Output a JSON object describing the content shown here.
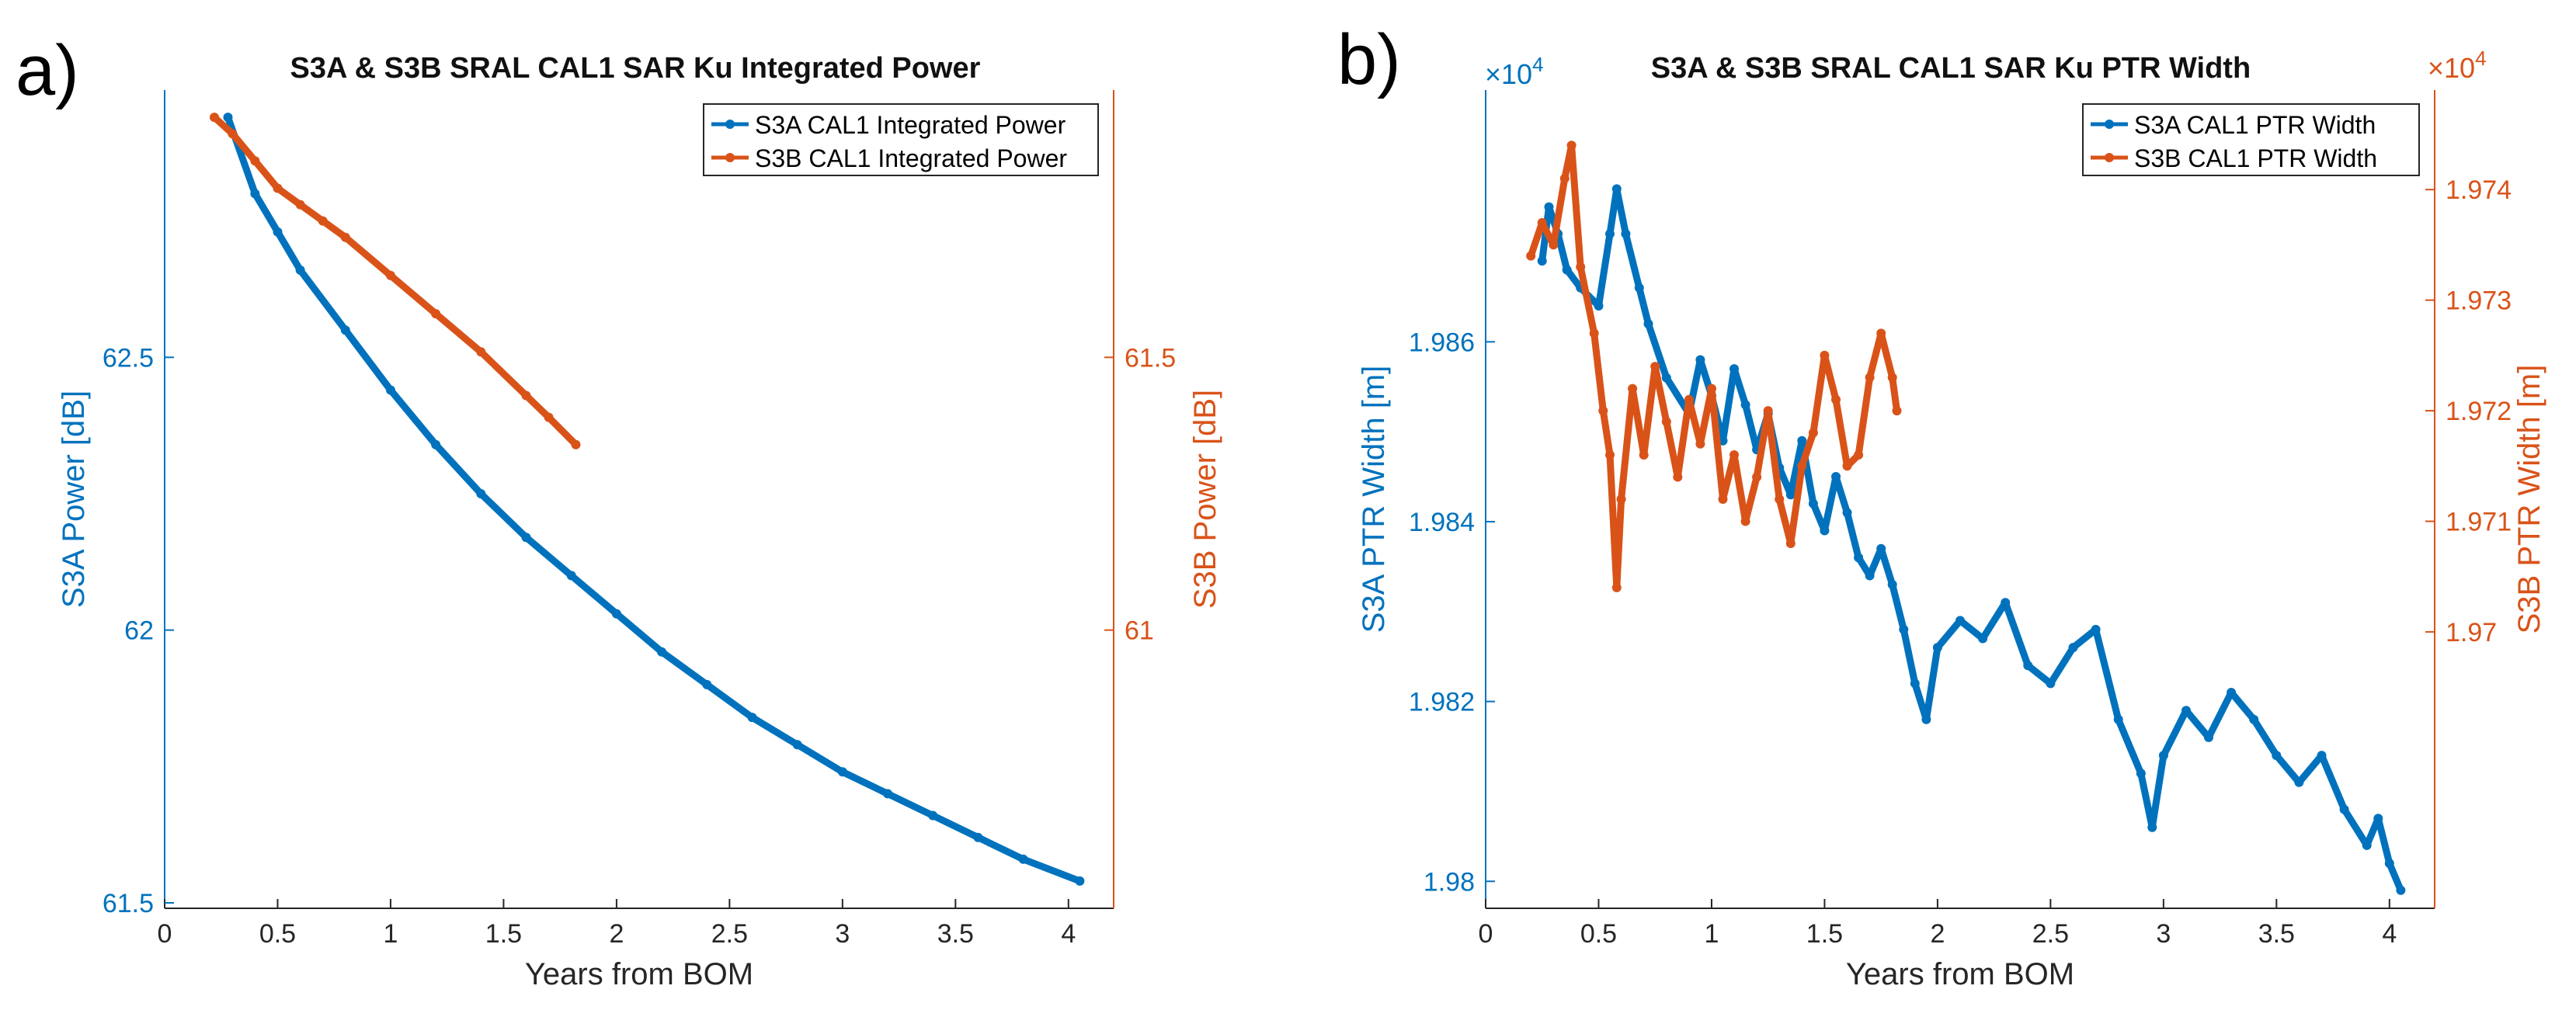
{
  "chart_data": [
    {
      "type": "line",
      "panel_label": "a)",
      "title": "S3A & S3B SRAL CAL1 SAR Ku Integrated Power",
      "xlabel": "Years from BOM",
      "ylabel_left": "S3A Power [dB]",
      "ylabel_right": "S3B Power [dB]",
      "xlim": [
        0,
        4.2
      ],
      "ylim_left": [
        61.49,
        62.99
      ],
      "ylim_right": [
        60.49,
        61.99
      ],
      "xticks": [
        0,
        0.5,
        1,
        1.5,
        2,
        2.5,
        3,
        3.5,
        4
      ],
      "xtick_labels": [
        "0",
        "0.5",
        "1",
        "1.5",
        "2",
        "2.5",
        "3",
        "3.5",
        "4"
      ],
      "yticks_left": [
        61.5,
        62,
        62.5
      ],
      "ytick_labels_left": [
        "61.5",
        "62",
        "62.5"
      ],
      "yticks_right": [
        61,
        61.5
      ],
      "ytick_labels_right": [
        "61",
        "61.5"
      ],
      "legend_position": "top-right",
      "series": [
        {
          "name": "S3A CAL1 Integrated Power",
          "axis": "left",
          "color": "#0072BD",
          "x": [
            0.28,
            0.4,
            0.5,
            0.6,
            0.8,
            1.0,
            1.2,
            1.4,
            1.6,
            1.8,
            2.0,
            2.2,
            2.4,
            2.6,
            2.8,
            3.0,
            3.2,
            3.4,
            3.6,
            3.8,
            4.05
          ],
          "y": [
            62.94,
            62.8,
            62.73,
            62.66,
            62.55,
            62.44,
            62.34,
            62.25,
            62.17,
            62.1,
            62.03,
            61.96,
            61.9,
            61.84,
            61.79,
            61.74,
            61.7,
            61.66,
            61.62,
            61.58,
            61.54
          ]
        },
        {
          "name": "S3B CAL1 Integrated Power",
          "axis": "right",
          "color": "#D95319",
          "x": [
            0.22,
            0.3,
            0.4,
            0.5,
            0.6,
            0.7,
            0.8,
            1.0,
            1.2,
            1.4,
            1.6,
            1.7,
            1.82
          ],
          "y": [
            61.94,
            61.91,
            61.86,
            61.81,
            61.78,
            61.75,
            61.72,
            61.65,
            61.58,
            61.51,
            61.43,
            61.39,
            61.34
          ]
        }
      ]
    },
    {
      "type": "line",
      "panel_label": "b)",
      "title": "S3A & S3B SRAL CAL1 SAR Ku PTR Width",
      "xlabel": "Years from BOM",
      "ylabel_left": "S3A PTR Width [m]",
      "ylabel_right": "S3B PTR Width [m]",
      "exponent_left": "×10",
      "exponent_right": "×10",
      "exponent_power": "4",
      "xlim": [
        0,
        4.2
      ],
      "ylim_left": [
        1.9797,
        1.9888
      ],
      "ylim_right": [
        1.9675,
        1.9749
      ],
      "xticks": [
        0,
        0.5,
        1,
        1.5,
        2,
        2.5,
        3,
        3.5,
        4
      ],
      "xtick_labels": [
        "0",
        "0.5",
        "1",
        "1.5",
        "2",
        "2.5",
        "3",
        "3.5",
        "4"
      ],
      "yticks_left": [
        1.98,
        1.982,
        1.984,
        1.986
      ],
      "ytick_labels_left": [
        "1.98",
        "1.982",
        "1.984",
        "1.986"
      ],
      "yticks_right": [
        1.97,
        1.971,
        1.972,
        1.973,
        1.974
      ],
      "ytick_labels_right": [
        "1.97",
        "1.971",
        "1.972",
        "1.973",
        "1.974"
      ],
      "legend_position": "top-right",
      "series": [
        {
          "name": "S3A CAL1 PTR Width",
          "axis": "left",
          "color": "#0072BD",
          "x": [
            0.25,
            0.28,
            0.32,
            0.36,
            0.42,
            0.5,
            0.55,
            0.58,
            0.62,
            0.68,
            0.72,
            0.8,
            0.9,
            0.95,
            1.0,
            1.05,
            1.1,
            1.15,
            1.2,
            1.25,
            1.3,
            1.35,
            1.4,
            1.45,
            1.5,
            1.55,
            1.6,
            1.65,
            1.7,
            1.75,
            1.8,
            1.85,
            1.9,
            1.95,
            2.0,
            2.1,
            2.2,
            2.3,
            2.4,
            2.5,
            2.6,
            2.7,
            2.8,
            2.9,
            2.95,
            3.0,
            3.1,
            3.2,
            3.3,
            3.4,
            3.5,
            3.6,
            3.7,
            3.8,
            3.9,
            3.95,
            4.0,
            4.05
          ],
          "y": [
            1.9869,
            1.9875,
            1.9872,
            1.9868,
            1.9866,
            1.9864,
            1.9872,
            1.9877,
            1.9872,
            1.9866,
            1.9862,
            1.9856,
            1.9852,
            1.9858,
            1.9854,
            1.9849,
            1.9857,
            1.9853,
            1.9848,
            1.9852,
            1.9846,
            1.9843,
            1.9849,
            1.9842,
            1.9839,
            1.9845,
            1.9841,
            1.9836,
            1.9834,
            1.9837,
            1.9833,
            1.9828,
            1.9822,
            1.9818,
            1.9826,
            1.9829,
            1.9827,
            1.9831,
            1.9824,
            1.9822,
            1.9826,
            1.9828,
            1.9818,
            1.9812,
            1.9806,
            1.9814,
            1.9819,
            1.9816,
            1.9821,
            1.9818,
            1.9814,
            1.9811,
            1.9814,
            1.9808,
            1.9804,
            1.9807,
            1.9802,
            1.9799
          ]
        },
        {
          "name": "S3B CAL1 PTR Width",
          "axis": "right",
          "color": "#D95319",
          "x": [
            0.2,
            0.25,
            0.3,
            0.35,
            0.38,
            0.42,
            0.48,
            0.52,
            0.55,
            0.58,
            0.6,
            0.65,
            0.7,
            0.75,
            0.8,
            0.85,
            0.9,
            0.95,
            1.0,
            1.05,
            1.1,
            1.15,
            1.2,
            1.25,
            1.3,
            1.35,
            1.4,
            1.45,
            1.5,
            1.55,
            1.6,
            1.65,
            1.7,
            1.75,
            1.8,
            1.82
          ],
          "y": [
            1.9734,
            1.9737,
            1.9735,
            1.9741,
            1.9744,
            1.9733,
            1.9727,
            1.972,
            1.9716,
            1.9704,
            1.9712,
            1.9722,
            1.9716,
            1.9724,
            1.9719,
            1.9714,
            1.9721,
            1.9717,
            1.9722,
            1.9712,
            1.9716,
            1.971,
            1.9714,
            1.972,
            1.9712,
            1.9708,
            1.9715,
            1.9718,
            1.9725,
            1.9721,
            1.9715,
            1.9716,
            1.9723,
            1.9727,
            1.9723,
            1.972
          ]
        }
      ]
    }
  ]
}
